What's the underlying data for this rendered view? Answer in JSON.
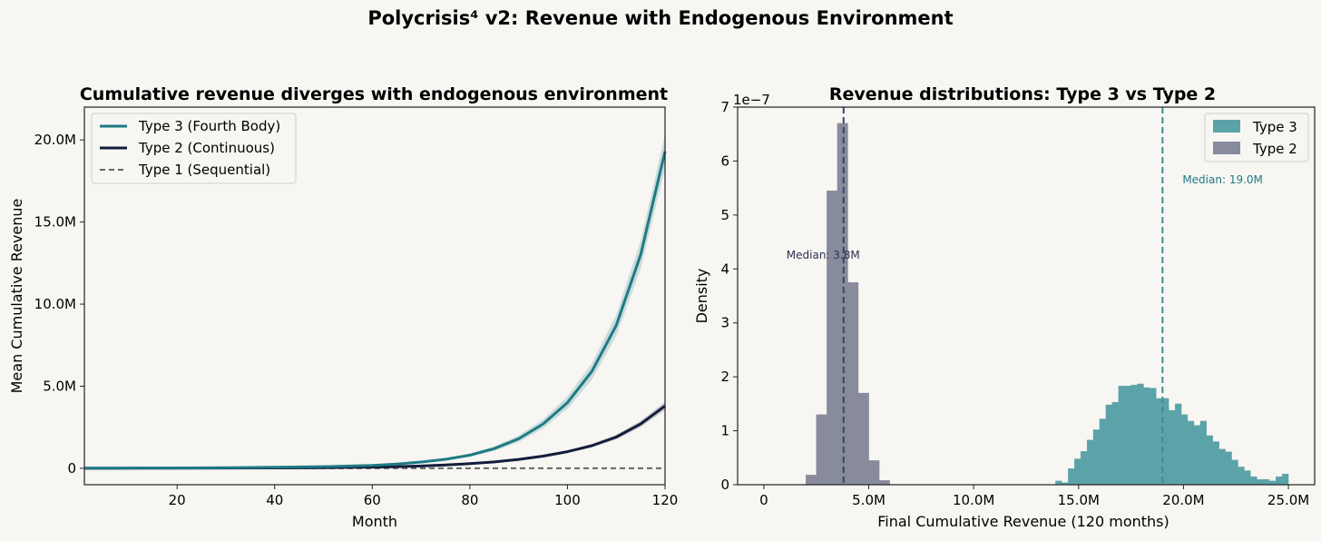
{
  "figure": {
    "suptitle": "Polycrisis⁴ v2: Revenue with Endogenous Environment"
  },
  "colors": {
    "type3": "#1f7a85",
    "type2": "#131d3b",
    "type1": "#666666",
    "hist_type3": "#5ba3a8",
    "hist_type2": "#878b9c",
    "background": "#f7f6f2"
  },
  "chart_data": [
    {
      "type": "line",
      "title": "Cumulative revenue diverges with endogenous environment",
      "xlabel": "Month",
      "ylabel": "Mean Cumulative Revenue",
      "xlim": [
        1,
        120
      ],
      "ylim": [
        -1000000,
        22000000
      ],
      "xticks": [
        20,
        40,
        60,
        80,
        100,
        120
      ],
      "xtick_labels": [
        "20",
        "40",
        "60",
        "80",
        "100",
        "120"
      ],
      "yticks": [
        0,
        5000000,
        10000000,
        15000000,
        20000000
      ],
      "ytick_labels": [
        "0",
        "5.0M",
        "10.0M",
        "15.0M",
        "20.0M"
      ],
      "legend": "top-left",
      "grid": false,
      "x": [
        1,
        10,
        20,
        30,
        40,
        50,
        60,
        65,
        70,
        75,
        80,
        85,
        90,
        95,
        100,
        105,
        110,
        115,
        120
      ],
      "series": [
        {
          "name": "Type 3 (Fourth Body)",
          "color": "#1f7a85",
          "style": "solid",
          "values": [
            5000,
            10000,
            20000,
            35000,
            60000,
            100000,
            170000,
            260000,
            380000,
            550000,
            800000,
            1200000,
            1800000,
            2700000,
            4000000,
            5900000,
            8700000,
            13000000,
            19300000
          ],
          "band": [
            500,
            1500,
            3000,
            5000,
            8000,
            12000,
            20000,
            30000,
            45000,
            65000,
            100000,
            140000,
            200000,
            280000,
            380000,
            500000,
            650000,
            850000,
            1050000
          ]
        },
        {
          "name": "Type 2 (Continuous)",
          "color": "#131d3b",
          "style": "solid",
          "values": [
            2000,
            5000,
            9000,
            15000,
            25000,
            40000,
            70000,
            100000,
            140000,
            200000,
            280000,
            390000,
            540000,
            740000,
            1010000,
            1380000,
            1900000,
            2700000,
            3800000
          ],
          "band": [
            200,
            500,
            800,
            1200,
            2000,
            3000,
            5000,
            7000,
            10000,
            14000,
            20000,
            28000,
            38000,
            52000,
            72000,
            100000,
            140000,
            190000,
            250000
          ]
        },
        {
          "name": "Type 1 (Sequential)",
          "color": "#666666",
          "style": "dashed",
          "values": [
            0,
            0,
            0,
            0,
            0,
            0,
            0,
            0,
            0,
            0,
            0,
            0,
            0,
            0,
            0,
            0,
            0,
            0,
            0
          ]
        }
      ]
    },
    {
      "type": "bar",
      "subtype": "histogram",
      "title": "Revenue distributions: Type 3 vs Type 2",
      "xlabel": "Final Cumulative Revenue (120 months)",
      "ylabel": "Density",
      "offset_label": "1e−7",
      "xlim": [
        -1250000,
        26250000
      ],
      "ylim": [
        0,
        7
      ],
      "xticks": [
        0,
        5000000,
        10000000,
        15000000,
        20000000,
        25000000
      ],
      "xtick_labels": [
        "0",
        "5.0M",
        "10.0M",
        "15.0M",
        "20.0M",
        "25.0M"
      ],
      "yticks": [
        0,
        1,
        2,
        3,
        4,
        5,
        6,
        7
      ],
      "ytick_labels": [
        "0",
        "1",
        "2",
        "3",
        "4",
        "5",
        "6",
        "7"
      ],
      "legend": "top-right",
      "grid": false,
      "series": [
        {
          "name": "Type 2",
          "color": "#878b9c",
          "bin_width": 500000,
          "bins": [
            [
              2000000,
              0.18
            ],
            [
              2500000,
              1.3
            ],
            [
              3000000,
              5.45
            ],
            [
              3500000,
              6.7
            ],
            [
              4000000,
              3.75
            ],
            [
              4500000,
              1.7
            ],
            [
              5000000,
              0.45
            ],
            [
              5500000,
              0.08
            ]
          ],
          "median": 3800000,
          "median_label": "Median: 3.8M"
        },
        {
          "name": "Type 3",
          "color": "#5ba3a8",
          "bin_width": 300000,
          "bins": [
            [
              13900000,
              0.07
            ],
            [
              14200000,
              0.04
            ],
            [
              14500000,
              0.3
            ],
            [
              14800000,
              0.48
            ],
            [
              15100000,
              0.62
            ],
            [
              15400000,
              0.83
            ],
            [
              15700000,
              1.02
            ],
            [
              16000000,
              1.22
            ],
            [
              16300000,
              1.48
            ],
            [
              16600000,
              1.53
            ],
            [
              16900000,
              1.83
            ],
            [
              17200000,
              1.83
            ],
            [
              17500000,
              1.85
            ],
            [
              17800000,
              1.87
            ],
            [
              18100000,
              1.8
            ],
            [
              18400000,
              1.79
            ],
            [
              18700000,
              1.6
            ],
            [
              19000000,
              1.6
            ],
            [
              19300000,
              1.38
            ],
            [
              19600000,
              1.5
            ],
            [
              19900000,
              1.3
            ],
            [
              20200000,
              1.18
            ],
            [
              20500000,
              1.1
            ],
            [
              20800000,
              1.18
            ],
            [
              21100000,
              0.91
            ],
            [
              21400000,
              0.8
            ],
            [
              21700000,
              0.66
            ],
            [
              22000000,
              0.61
            ],
            [
              22300000,
              0.46
            ],
            [
              22600000,
              0.33
            ],
            [
              22900000,
              0.26
            ],
            [
              23200000,
              0.15
            ],
            [
              23500000,
              0.1
            ],
            [
              23800000,
              0.1
            ],
            [
              24100000,
              0.07
            ],
            [
              24400000,
              0.15
            ],
            [
              24700000,
              0.2
            ]
          ],
          "median": 19000000,
          "median_label": "Median: 19.0M"
        }
      ]
    }
  ]
}
